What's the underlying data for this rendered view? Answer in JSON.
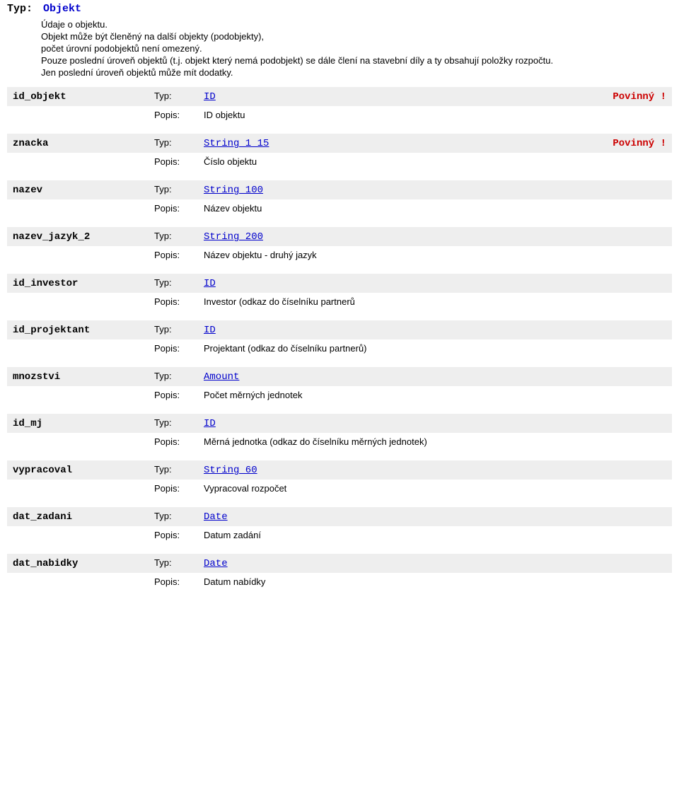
{
  "header": {
    "typ_label": "Typ:",
    "typ_value": "Objekt",
    "description_lines": [
      "Údaje o objektu.",
      "Objekt může být členěný na další objekty (podobjekty),",
      "počet úrovní podobjektů není omezený.",
      "Pouze poslední úroveň objektů (t.j. objekt který nemá podobjekt) se dále člení na stavební díly a ty obsahují položky rozpočtu.",
      "Jen poslední úroveň objektů může mít dodatky."
    ]
  },
  "labels": {
    "typ": "Typ:",
    "popis": "Popis:",
    "required": "Povinný !"
  },
  "fields": [
    {
      "name": "id_objekt",
      "type": "ID",
      "required": true,
      "popis": "ID objektu"
    },
    {
      "name": "znacka",
      "type": "String_1_15",
      "required": true,
      "popis": "Číslo objektu"
    },
    {
      "name": "nazev",
      "type": "String_100",
      "required": false,
      "popis": "Název objektu"
    },
    {
      "name": "nazev_jazyk_2",
      "type": "String_200",
      "required": false,
      "popis": "Název objektu - druhý jazyk"
    },
    {
      "name": "id_investor",
      "type": "ID",
      "required": false,
      "popis": "Investor (odkaz do číselníku  partnerů"
    },
    {
      "name": "id_projektant",
      "type": "ID",
      "required": false,
      "popis": "Projektant (odkaz do číselníku  partnerů)"
    },
    {
      "name": "mnozstvi",
      "type": "Amount",
      "required": false,
      "popis": "Počet měrných jednotek"
    },
    {
      "name": "id_mj",
      "type": "ID",
      "required": false,
      "popis": "Měrná jednotka (odkaz do číselníku  měrných jednotek)"
    },
    {
      "name": "vypracoval",
      "type": "String_60",
      "required": false,
      "popis": "Vypracoval rozpočet"
    },
    {
      "name": "dat_zadani",
      "type": "Date",
      "required": false,
      "popis": "Datum zadání"
    },
    {
      "name": "dat_nabidky",
      "type": "Date",
      "required": false,
      "popis": "Datum nabídky"
    }
  ]
}
